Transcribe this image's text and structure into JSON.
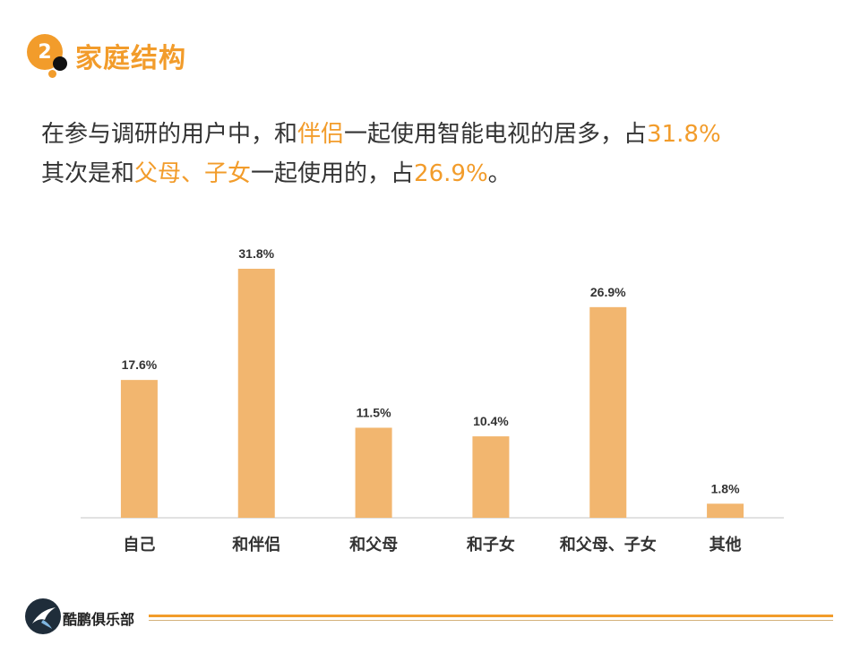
{
  "header": {
    "badge_number": "2",
    "title": "家庭结构"
  },
  "summary": {
    "line1_a": "在参与调研的用户中，和",
    "line1_hl1": "伴侣",
    "line1_b": "一起使用智能电视的居多，占",
    "line1_hl2": "31.8%",
    "line2_a": "其次是和",
    "line2_hl1": "父母、子女",
    "line2_b": "一起使用的，占",
    "line2_hl2": "26.9%",
    "line2_c": "。"
  },
  "chart_data": {
    "type": "bar",
    "categories": [
      "自己",
      "和伴侣",
      "和父母",
      "和子女",
      "和父母、子女",
      "其他"
    ],
    "values": [
      17.6,
      31.8,
      11.5,
      10.4,
      26.9,
      1.8
    ],
    "value_labels": [
      "17.6%",
      "31.8%",
      "11.5%",
      "10.4%",
      "26.9%",
      "1.8%"
    ],
    "title": "",
    "xlabel": "",
    "ylabel": "",
    "ylim": [
      0,
      35
    ],
    "grid": false,
    "legend": "none",
    "bar_color": "#f2b66f",
    "axis_color": "#d9d9d9"
  },
  "footer": {
    "brand": "酷鹏俱乐部",
    "logo_icon": "bird-logo-icon"
  },
  "colors": {
    "accent": "#f29c2b",
    "text": "#333333"
  }
}
